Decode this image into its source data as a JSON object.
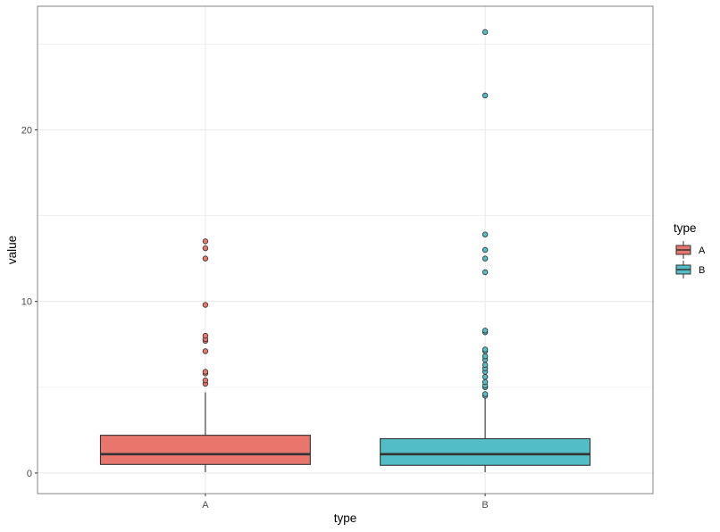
{
  "chart_data": {
    "type": "boxplot",
    "xlabel": "type",
    "ylabel": "value",
    "categories": [
      "A",
      "B"
    ],
    "ylim": [
      -1.2,
      27.2
    ],
    "y_ticks": [
      0,
      10,
      20
    ],
    "y_minor_ticks": [
      5,
      15,
      25
    ],
    "grid": true,
    "legend": {
      "title": "type",
      "position": "right",
      "entries": [
        {
          "label": "A",
          "color": "#E8766D"
        },
        {
          "label": "B",
          "color": "#52BDC4"
        }
      ]
    },
    "boxes": [
      {
        "category": "A",
        "color": "#E8766D",
        "whisker_low": 0.05,
        "q1": 0.5,
        "median": 1.1,
        "q3": 2.2,
        "whisker_high": 4.7,
        "outliers": [
          5.2,
          5.4,
          5.8,
          5.9,
          7.1,
          7.7,
          7.8,
          8.0,
          9.8,
          12.5,
          13.1,
          13.5
        ]
      },
      {
        "category": "B",
        "color": "#52BDC4",
        "whisker_low": 0.05,
        "q1": 0.45,
        "median": 1.1,
        "q3": 2.0,
        "whisker_high": 4.4,
        "outliers": [
          4.5,
          4.6,
          5.0,
          5.1,
          5.3,
          5.6,
          5.9,
          6.1,
          6.3,
          6.6,
          6.8,
          7.1,
          7.2,
          8.2,
          8.3,
          11.7,
          12.5,
          13.0,
          13.9,
          22.0,
          25.7
        ]
      }
    ]
  }
}
